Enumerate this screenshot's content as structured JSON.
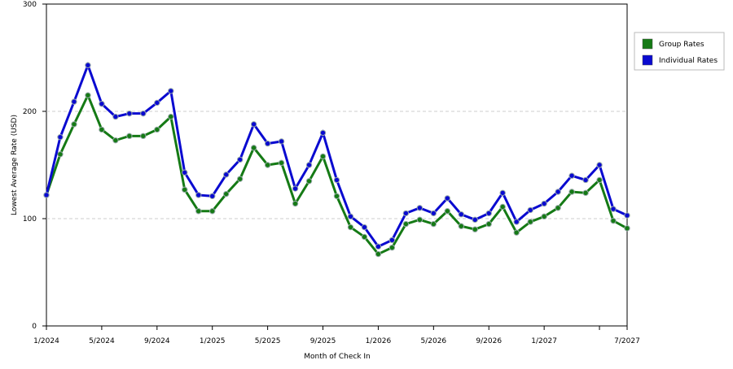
{
  "chart_data": {
    "type": "line",
    "x_label": "Month of Check In",
    "y_label": "Lowest Average Rate (USD)",
    "categories": [
      "1/2024",
      null,
      null,
      null,
      "5/2024",
      null,
      null,
      null,
      "9/2024",
      null,
      null,
      null,
      "1/2025",
      null,
      null,
      null,
      "5/2025",
      null,
      null,
      null,
      "9/2025",
      null,
      null,
      null,
      "1/2026",
      null,
      null,
      null,
      "5/2026",
      null,
      null,
      null,
      "9/2026",
      null,
      null,
      null,
      "1/2027",
      null,
      null,
      null,
      null,
      null,
      "7/2027"
    ],
    "series": [
      {
        "name": "Group Rates",
        "color": "#157a15",
        "values": [
          122,
          160,
          188,
          215,
          183,
          173,
          177,
          177,
          183,
          195,
          127,
          107,
          107,
          123,
          137,
          166,
          150,
          152,
          114,
          135,
          158,
          121,
          92,
          83,
          67,
          73,
          95,
          99,
          95,
          107,
          93,
          90,
          95,
          111,
          87,
          97,
          102,
          110,
          125,
          124,
          136,
          98,
          91
        ]
      },
      {
        "name": "Individual Rates",
        "color": "#0a0ad0",
        "values": [
          122,
          176,
          209,
          243,
          207,
          195,
          198,
          198,
          208,
          219,
          143,
          122,
          121,
          141,
          155,
          188,
          170,
          172,
          128,
          150,
          180,
          136,
          102,
          92,
          74,
          80,
          105,
          110,
          105,
          119,
          104,
          99,
          105,
          124,
          97,
          108,
          114,
          125,
          140,
          136,
          150,
          109,
          103
        ]
      }
    ],
    "ylim": [
      0,
      300
    ],
    "yticks": [
      0,
      100,
      200,
      300
    ],
    "grid": true
  }
}
